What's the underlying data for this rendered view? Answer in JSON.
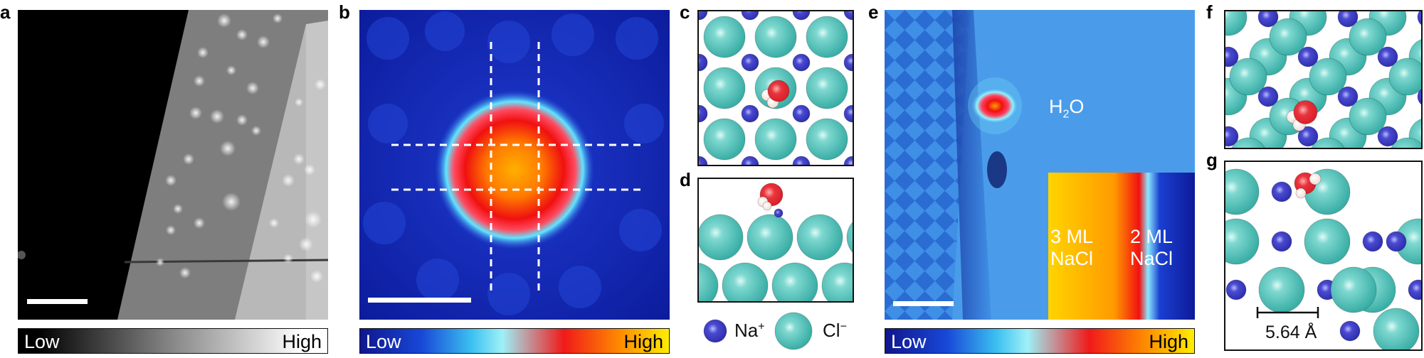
{
  "labels": {
    "a": "a",
    "b": "b",
    "c": "c",
    "d": "d",
    "e": "e",
    "f": "f",
    "g": "g"
  },
  "colorbars": {
    "gray": {
      "low": "Low",
      "high": "High"
    },
    "heat_b": {
      "low": "Low",
      "high": "High"
    },
    "heat_e": {
      "low": "Low",
      "high": "High"
    }
  },
  "legend": {
    "na_base": "Na",
    "na_sup": "+",
    "cl_base": "Cl",
    "cl_sup": "−"
  },
  "panel_e": {
    "molecule_base": "H",
    "molecule_sub": "2",
    "molecule_tail": "O",
    "left_line1": "3 ML",
    "left_line2": "NaCl",
    "right_line1": "2 ML",
    "right_line2": "NaCl"
  },
  "panel_g": {
    "lattice_constant": "5.64 Å"
  },
  "colors": {
    "na": "#2f2fb0",
    "cl": "#3aaea6",
    "oxygen": "#d9202a",
    "hydrogen": "#f3dcd4"
  }
}
